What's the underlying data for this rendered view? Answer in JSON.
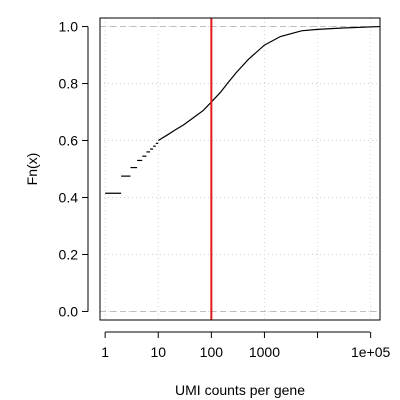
{
  "chart_data": {
    "type": "line",
    "subtype": "empirical-cdf-step",
    "xlabel": "UMI counts per gene",
    "ylabel": "Fn(x)",
    "x_scale": "log10",
    "xlim": [
      0.8,
      150000
    ],
    "ylim": [
      -0.03,
      1.03
    ],
    "x_ticks": [
      {
        "value": 1,
        "label": "1"
      },
      {
        "value": 10,
        "label": "10"
      },
      {
        "value": 100,
        "label": "100"
      },
      {
        "value": 1000,
        "label": "1000"
      },
      {
        "value": 10000,
        "label": ""
      },
      {
        "value": 100000,
        "label": "1e+05"
      }
    ],
    "y_ticks": [
      {
        "value": 0.0,
        "label": "0.0"
      },
      {
        "value": 0.2,
        "label": "0.2"
      },
      {
        "value": 0.4,
        "label": "0.4"
      },
      {
        "value": 0.6,
        "label": "0.6"
      },
      {
        "value": 0.8,
        "label": "0.8"
      },
      {
        "value": 1.0,
        "label": "1.0"
      }
    ],
    "grid": "dotted",
    "reference_hlines": [
      0,
      1
    ],
    "vline": {
      "x": 100,
      "color": "#e31a1c"
    },
    "step_segments": [
      {
        "x": 1,
        "y": 0.415
      },
      {
        "x": 2,
        "y": 0.475
      },
      {
        "x": 3,
        "y": 0.505
      },
      {
        "x": 4,
        "y": 0.53
      },
      {
        "x": 5,
        "y": 0.545
      },
      {
        "x": 6,
        "y": 0.56
      },
      {
        "x": 7,
        "y": 0.57
      },
      {
        "x": 8,
        "y": 0.58
      },
      {
        "x": 9,
        "y": 0.59
      }
    ],
    "curve": [
      {
        "x": 10,
        "y": 0.6
      },
      {
        "x": 15,
        "y": 0.62
      },
      {
        "x": 20,
        "y": 0.635
      },
      {
        "x": 30,
        "y": 0.655
      },
      {
        "x": 50,
        "y": 0.685
      },
      {
        "x": 70,
        "y": 0.705
      },
      {
        "x": 100,
        "y": 0.735
      },
      {
        "x": 150,
        "y": 0.77
      },
      {
        "x": 200,
        "y": 0.8
      },
      {
        "x": 300,
        "y": 0.84
      },
      {
        "x": 500,
        "y": 0.885
      },
      {
        "x": 1000,
        "y": 0.935
      },
      {
        "x": 2000,
        "y": 0.965
      },
      {
        "x": 5000,
        "y": 0.985
      },
      {
        "x": 10000,
        "y": 0.99
      },
      {
        "x": 30000,
        "y": 0.995
      },
      {
        "x": 150000,
        "y": 1.0
      }
    ],
    "colors": {
      "curve": "#000000",
      "vline": "#e31a1c",
      "grid": "#d3d3d3",
      "ref_lines": "#bebebe"
    }
  }
}
